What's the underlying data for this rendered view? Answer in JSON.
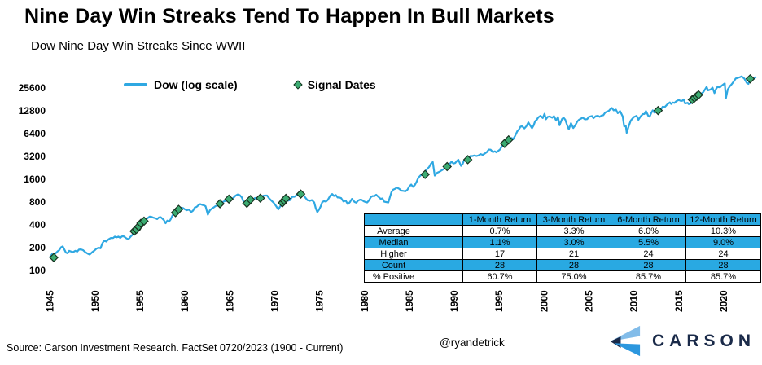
{
  "header": {
    "title": "Nine Day Win Streaks Tend To Happen In Bull Markets",
    "subtitle": "Dow Nine Day Win Streaks Since WWII"
  },
  "legend": {
    "line_label": "Dow (log scale)",
    "marker_label": "Signal Dates"
  },
  "colors": {
    "line": "#2FA8E2",
    "marker_fill": "#3CAC72",
    "marker_stroke": "#17301f",
    "table_blue": "#29A9E2",
    "logo_light_blue": "#82BCE9",
    "logo_blue": "#2C97DE",
    "logo_navy": "#1A2A49"
  },
  "chart_data": {
    "type": "line",
    "y_scale": "log2",
    "ylim": [
      100,
      25600
    ],
    "xlim": [
      1945,
      2023.7
    ],
    "grid": false,
    "legend_position": "top-left-inside",
    "y_ticks": [
      25600,
      12800,
      6400,
      3200,
      1600,
      800,
      400,
      200,
      100
    ],
    "x_ticks": [
      1945,
      1950,
      1955,
      1960,
      1965,
      1970,
      1975,
      1980,
      1985,
      1990,
      1995,
      2000,
      2005,
      2010,
      2015,
      2020
    ],
    "series": [
      {
        "name": "Dow (log scale)",
        "type": "line",
        "points": [
          [
            1945,
            152
          ],
          [
            1945.6,
            168
          ],
          [
            1946.4,
            208
          ],
          [
            1946.75,
            172
          ],
          [
            1947.3,
            178
          ],
          [
            1947.8,
            182
          ],
          [
            1948.4,
            190
          ],
          [
            1948.9,
            175
          ],
          [
            1949.4,
            162
          ],
          [
            1949.9,
            182
          ],
          [
            1950.4,
            200
          ],
          [
            1950.6,
            196
          ],
          [
            1951,
            248
          ],
          [
            1951.5,
            258
          ],
          [
            1952,
            268
          ],
          [
            1952.6,
            280
          ],
          [
            1953.2,
            282
          ],
          [
            1953.7,
            258
          ],
          [
            1954.2,
            300
          ],
          [
            1954.7,
            360
          ],
          [
            1955.1,
            420
          ],
          [
            1955.6,
            465
          ],
          [
            1956.3,
            510
          ],
          [
            1956.7,
            490
          ],
          [
            1957.3,
            505
          ],
          [
            1957.85,
            420
          ],
          [
            1958.4,
            470
          ],
          [
            1959,
            590
          ],
          [
            1959.6,
            675
          ],
          [
            1960.2,
            625
          ],
          [
            1960.7,
            590
          ],
          [
            1961.3,
            690
          ],
          [
            1961.9,
            735
          ],
          [
            1962.3,
            705
          ],
          [
            1962.55,
            545
          ],
          [
            1963,
            655
          ],
          [
            1963.6,
            720
          ],
          [
            1964.2,
            800
          ],
          [
            1964.9,
            875
          ],
          [
            1965.4,
            910
          ],
          [
            1966.1,
            990
          ],
          [
            1966.8,
            750
          ],
          [
            1967.3,
            860
          ],
          [
            1967.8,
            905
          ],
          [
            1968.2,
            865
          ],
          [
            1968.9,
            975
          ],
          [
            1969.4,
            890
          ],
          [
            1969.9,
            780
          ],
          [
            1970.4,
            640
          ],
          [
            1970.9,
            780
          ],
          [
            1971.3,
            900
          ],
          [
            1971.7,
            850
          ],
          [
            1972.2,
            940
          ],
          [
            1972.95,
            1030
          ],
          [
            1973.4,
            920
          ],
          [
            1973.9,
            830
          ],
          [
            1974.4,
            790
          ],
          [
            1974.75,
            590
          ],
          [
            1975.3,
            800
          ],
          [
            1975.9,
            850
          ],
          [
            1976.2,
            975
          ],
          [
            1976.8,
            990
          ],
          [
            1977.4,
            900
          ],
          [
            1978.15,
            750
          ],
          [
            1978.6,
            880
          ],
          [
            1978.9,
            800
          ],
          [
            1979.5,
            860
          ],
          [
            1979.9,
            820
          ],
          [
            1980.3,
            790
          ],
          [
            1980.9,
            960
          ],
          [
            1981.3,
            1000
          ],
          [
            1981.8,
            880
          ],
          [
            1982.4,
            800
          ],
          [
            1982.65,
            790
          ],
          [
            1983,
            1080
          ],
          [
            1983.6,
            1240
          ],
          [
            1984.1,
            1130
          ],
          [
            1984.55,
            1110
          ],
          [
            1985,
            1290
          ],
          [
            1985.6,
            1340
          ],
          [
            1986.2,
            1780
          ],
          [
            1986.6,
            1790
          ],
          [
            1987,
            2200
          ],
          [
            1987.6,
            2700
          ],
          [
            1987.82,
            1790
          ],
          [
            1988.1,
            1950
          ],
          [
            1988.6,
            2100
          ],
          [
            1989.1,
            2300
          ],
          [
            1989.7,
            2740
          ],
          [
            1990.1,
            2620
          ],
          [
            1990.45,
            2900
          ],
          [
            1990.75,
            2400
          ],
          [
            1991.1,
            2880
          ],
          [
            1991.45,
            2920
          ],
          [
            1992,
            3230
          ],
          [
            1992.7,
            3300
          ],
          [
            1993.4,
            3500
          ],
          [
            1994.05,
            3930
          ],
          [
            1994.3,
            3650
          ],
          [
            1994.9,
            3800
          ],
          [
            1995.5,
            4600
          ],
          [
            1996,
            5200
          ],
          [
            1996.4,
            5600
          ],
          [
            1996.55,
            5400
          ],
          [
            1997,
            6850
          ],
          [
            1997.55,
            8000
          ],
          [
            1997.8,
            7500
          ],
          [
            1998.25,
            9000
          ],
          [
            1998.65,
            7550
          ],
          [
            1999,
            9350
          ],
          [
            1999.35,
            10500
          ],
          [
            1999.6,
            11000
          ],
          [
            1999.85,
            10300
          ],
          [
            2000.05,
            11700
          ],
          [
            2000.2,
            9900
          ],
          [
            2000.6,
            10800
          ],
          [
            2000.9,
            10400
          ],
          [
            2001.1,
            10900
          ],
          [
            2001.35,
            9500
          ],
          [
            2001.55,
            10600
          ],
          [
            2001.72,
            8250
          ],
          [
            2002,
            10000
          ],
          [
            2002.35,
            9800
          ],
          [
            2002.75,
            7300
          ],
          [
            2003,
            8800
          ],
          [
            2003.25,
            7600
          ],
          [
            2003.9,
            9800
          ],
          [
            2004.3,
            10400
          ],
          [
            2004.8,
            9950
          ],
          [
            2005.15,
            10800
          ],
          [
            2005.5,
            10250
          ],
          [
            2006,
            11000
          ],
          [
            2006.6,
            11200
          ],
          [
            2007,
            12500
          ],
          [
            2007.55,
            13950
          ],
          [
            2007.75,
            13000
          ],
          [
            2008,
            13300
          ],
          [
            2008.2,
            11900
          ],
          [
            2008.45,
            12700
          ],
          [
            2008.75,
            10800
          ],
          [
            2008.92,
            8000
          ],
          [
            2009.1,
            8100
          ],
          [
            2009.2,
            6550
          ],
          [
            2009.65,
            9500
          ],
          [
            2010,
            10600
          ],
          [
            2010.3,
            11000
          ],
          [
            2010.5,
            9750
          ],
          [
            2011,
            11600
          ],
          [
            2011.35,
            12700
          ],
          [
            2011.6,
            11000
          ],
          [
            2011.75,
            10700
          ],
          [
            2012.1,
            13000
          ],
          [
            2012.45,
            12400
          ],
          [
            2012.8,
            13100
          ],
          [
            2013.2,
            14500
          ],
          [
            2013.7,
            15500
          ],
          [
            2014,
            16500
          ],
          [
            2014.15,
            15750
          ],
          [
            2014.7,
            17050
          ],
          [
            2015,
            17800
          ],
          [
            2015.55,
            18100
          ],
          [
            2015.7,
            16000
          ],
          [
            2016,
            16300
          ],
          [
            2016.1,
            15700
          ],
          [
            2016.55,
            18000
          ],
          [
            2017,
            19900
          ],
          [
            2017.5,
            21500
          ],
          [
            2017.95,
            24800
          ],
          [
            2018.1,
            26500
          ],
          [
            2018.25,
            23800
          ],
          [
            2018.55,
            24500
          ],
          [
            2018.75,
            25900
          ],
          [
            2018.97,
            21900
          ],
          [
            2019.3,
            26400
          ],
          [
            2019.6,
            26200
          ],
          [
            2019.95,
            28500
          ],
          [
            2020.12,
            29400
          ],
          [
            2020.24,
            18600
          ],
          [
            2020.45,
            24500
          ],
          [
            2020.7,
            27200
          ],
          [
            2020.85,
            28300
          ],
          [
            2021.1,
            31000
          ],
          [
            2021.35,
            34200
          ],
          [
            2021.6,
            34900
          ],
          [
            2021.85,
            35800
          ],
          [
            2022,
            36500
          ],
          [
            2022.3,
            34000
          ],
          [
            2022.5,
            31000
          ],
          [
            2022.55,
            30000
          ],
          [
            2022.75,
            29000
          ],
          [
            2022.95,
            33800
          ],
          [
            2023.15,
            33000
          ],
          [
            2023.35,
            33800
          ],
          [
            2023.55,
            35400
          ]
        ]
      },
      {
        "name": "Signal Dates",
        "type": "scatter",
        "points": [
          [
            1945.4,
            148
          ],
          [
            1954.35,
            330
          ],
          [
            1954.6,
            348
          ],
          [
            1954.85,
            380
          ],
          [
            1955.1,
            420
          ],
          [
            1955.45,
            448
          ],
          [
            1958.95,
            580
          ],
          [
            1959.3,
            640
          ],
          [
            1963.9,
            760
          ],
          [
            1964.9,
            875
          ],
          [
            1966.9,
            770
          ],
          [
            1967.3,
            862
          ],
          [
            1968.4,
            900
          ],
          [
            1970.85,
            780
          ],
          [
            1971.05,
            840
          ],
          [
            1971.25,
            895
          ],
          [
            1972.9,
            1020
          ],
          [
            1986.75,
            1850
          ],
          [
            1989.2,
            2350
          ],
          [
            1991.5,
            2900
          ],
          [
            1995.6,
            4750
          ],
          [
            1996.05,
            5300
          ],
          [
            2012.7,
            12900
          ],
          [
            2016.5,
            18000
          ],
          [
            2016.75,
            18900
          ],
          [
            2017.0,
            19900
          ],
          [
            2017.2,
            20800
          ],
          [
            2022.95,
            33800
          ]
        ]
      }
    ]
  },
  "stats_table": {
    "col_headers": [
      "",
      "",
      "1-Month Return",
      "3-Month Return",
      "6-Month Return",
      "12-Month Return"
    ],
    "rows": [
      {
        "label": "Average",
        "values": [
          "0.7%",
          "3.3%",
          "6.0%",
          "10.3%"
        ]
      },
      {
        "label": "Median",
        "values": [
          "1.1%",
          "3.0%",
          "5.5%",
          "9.0%"
        ]
      },
      {
        "label": "Higher",
        "values": [
          "17",
          "21",
          "24",
          "24"
        ]
      },
      {
        "label": "Count",
        "values": [
          "28",
          "28",
          "28",
          "28"
        ]
      },
      {
        "label": "% Positive",
        "values": [
          "60.7%",
          "75.0%",
          "85.7%",
          "85.7%"
        ]
      }
    ]
  },
  "footer": {
    "source": "Source: Carson Investment Research. FactSet 0720/2023 (1900 - Current)",
    "handle": "@ryandetrick",
    "brand": "CARSON"
  }
}
